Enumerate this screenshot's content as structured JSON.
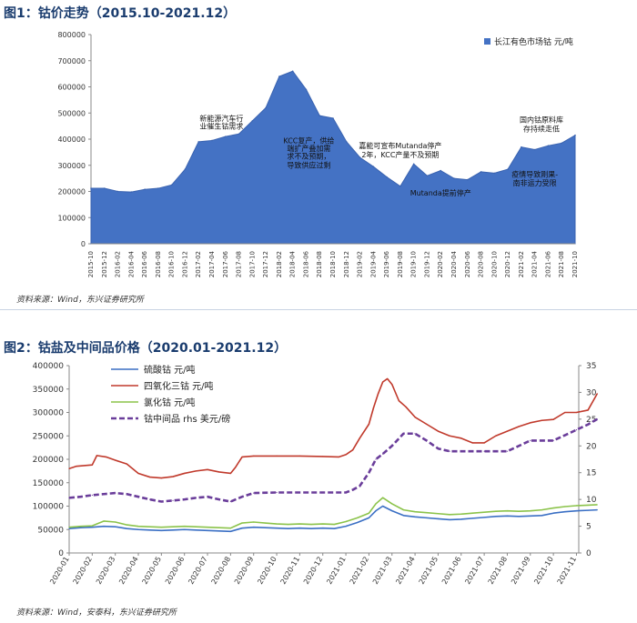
{
  "figure1": {
    "title": "图1：钴价走势（2015.10-2021.12）",
    "source": "资料来源：Wind，东兴证券研究所",
    "chart_data": {
      "type": "area",
      "legend": "长江有色市场钴 元/吨",
      "legend_position": "top-right",
      "ylim": [
        0,
        800000
      ],
      "yticks": [
        "0",
        "100000",
        "200000",
        "300000",
        "400000",
        "500000",
        "600000",
        "700000",
        "800000"
      ],
      "x_labels": [
        "2015-10",
        "2015-12",
        "2016-02",
        "2016-04",
        "2016-06",
        "2016-08",
        "2016-10",
        "2016-12",
        "2017-02",
        "2017-04",
        "2017-06",
        "2017-08",
        "2017-10",
        "2017-12",
        "2018-02",
        "2018-04",
        "2018-06",
        "2018-08",
        "2018-10",
        "2018-12",
        "2019-02",
        "2019-04",
        "2019-06",
        "2019-08",
        "2019-10",
        "2019-12",
        "2020-02",
        "2020-04",
        "2020-06",
        "2020-08",
        "2020-10",
        "2020-12",
        "2021-02",
        "2021-04",
        "2021-06",
        "2021-08",
        "2021-10"
      ],
      "values": [
        212000,
        212000,
        200000,
        198000,
        208000,
        212000,
        225000,
        285000,
        390000,
        395000,
        410000,
        420000,
        470000,
        520000,
        640000,
        660000,
        590000,
        490000,
        480000,
        390000,
        330000,
        295000,
        255000,
        220000,
        305000,
        260000,
        280000,
        250000,
        245000,
        275000,
        270000,
        285000,
        370000,
        360000,
        375000,
        385000,
        415000
      ],
      "annotations": [
        {
          "text": "新能源汽车行",
          "x_index": 9.7,
          "y": 470000
        },
        {
          "text": "业催生钴需求",
          "x_index": 9.7,
          "y": 440000
        },
        {
          "text": "KCC复产，供给",
          "x_index": 16.2,
          "y": 385000
        },
        {
          "text": "端扩产叠加需",
          "x_index": 16.2,
          "y": 355000
        },
        {
          "text": "求不及预期，",
          "x_index": 16.2,
          "y": 325000
        },
        {
          "text": "导致供应过剩",
          "x_index": 16.2,
          "y": 290000
        },
        {
          "text": "嘉能可宣布Mutanda停产",
          "x_index": 23.0,
          "y": 365000
        },
        {
          "text": "2年，KCC产量不及预期",
          "x_index": 23.0,
          "y": 330000
        },
        {
          "text": "Mutanda提前停产",
          "x_index": 26.0,
          "y": 185000
        },
        {
          "text": "国内钴原料库",
          "x_index": 33.5,
          "y": 465000
        },
        {
          "text": "存持续走低",
          "x_index": 33.5,
          "y": 430000
        },
        {
          "text": "疫情导致刚果-",
          "x_index": 33.0,
          "y": 255000
        },
        {
          "text": "南非运力受限",
          "x_index": 33.0,
          "y": 222000
        }
      ]
    }
  },
  "figure2": {
    "title": "图2：钴盐及中间品价格（2020.01-2021.12）",
    "source": "资料来源：Wind，安泰科，东兴证券研究所",
    "chart_data": {
      "type": "line",
      "ylim_left": [
        0,
        400000
      ],
      "yticks_left": [
        "0",
        "50000",
        "100000",
        "150000",
        "200000",
        "250000",
        "300000",
        "350000",
        "400000"
      ],
      "ylim_right": [
        0,
        35
      ],
      "yticks_right": [
        "0",
        "5",
        "10",
        "15",
        "20",
        "25",
        "30",
        "35"
      ],
      "x_labels": [
        "2020-01",
        "2020-02",
        "2020-03",
        "2020-04",
        "2020-05",
        "2020-06",
        "2020-07",
        "2020-08",
        "2020-09",
        "2020-10",
        "2020-11",
        "2020-12",
        "2021-01",
        "2021-02",
        "2021-03",
        "2021-04",
        "2021-05",
        "2021-06",
        "2021-07",
        "2021-08",
        "2021-09",
        "2021-10",
        "2021-11"
      ],
      "legend_position": "top-left",
      "series": [
        {
          "name": "硫酸钴 元/吨",
          "axis": "left",
          "color": "#3a6fc4",
          "dashed": false,
          "x": [
            0,
            0.5,
            1,
            1.5,
            2,
            2.5,
            3,
            3.5,
            4,
            4.5,
            5,
            5.5,
            6,
            6.5,
            7,
            7.5,
            8,
            8.5,
            9,
            9.5,
            10,
            10.5,
            11,
            11.5,
            12,
            12.5,
            13,
            13.3,
            13.6,
            14,
            14.5,
            15,
            15.5,
            16,
            16.5,
            17,
            17.5,
            18,
            18.5,
            19,
            19.5,
            20,
            20.5,
            21,
            21.5,
            22,
            22.5,
            22.9
          ],
          "values": [
            52000,
            54000,
            55000,
            57000,
            56000,
            52000,
            50000,
            49000,
            48000,
            49000,
            50000,
            49000,
            48000,
            47000,
            46000,
            53000,
            55000,
            54000,
            53000,
            52000,
            53000,
            52000,
            53000,
            52000,
            57000,
            65000,
            75000,
            90000,
            100000,
            90000,
            80000,
            77000,
            75000,
            73000,
            71000,
            72000,
            74000,
            76000,
            78000,
            79000,
            78000,
            79000,
            80000,
            85000,
            88000,
            90000,
            91000,
            92000
          ]
        },
        {
          "name": "四氧化三钴 元/吨",
          "axis": "left",
          "color": "#c0392b",
          "dashed": false,
          "x": [
            0,
            0.3,
            1,
            1.2,
            1.6,
            2,
            2.5,
            3,
            3.5,
            4,
            4.5,
            5,
            5.5,
            6,
            6.5,
            7,
            7.2,
            7.5,
            8,
            9,
            10,
            11,
            11.7,
            12,
            12.3,
            12.6,
            13,
            13.2,
            13.4,
            13.6,
            13.8,
            14,
            14.3,
            14.6,
            15,
            15.5,
            16,
            16.5,
            17,
            17.5,
            18,
            18.5,
            19,
            19.5,
            20,
            20.5,
            21,
            21.5,
            22,
            22.5,
            22.9
          ],
          "values": [
            180000,
            185000,
            188000,
            208000,
            205000,
            198000,
            190000,
            170000,
            162000,
            160000,
            163000,
            170000,
            175000,
            178000,
            173000,
            170000,
            182000,
            205000,
            207000,
            207000,
            207000,
            206000,
            205000,
            210000,
            220000,
            245000,
            275000,
            310000,
            340000,
            365000,
            372000,
            360000,
            325000,
            312000,
            290000,
            275000,
            260000,
            250000,
            245000,
            235000,
            235000,
            250000,
            260000,
            270000,
            278000,
            283000,
            285000,
            300000,
            300000,
            305000,
            340000
          ]
        },
        {
          "name": "氯化钴 元/吨",
          "axis": "left",
          "color": "#8bc34a",
          "dashed": false,
          "x": [
            0,
            0.5,
            1,
            1.5,
            2,
            2.5,
            3,
            3.5,
            4,
            4.5,
            5,
            5.5,
            6,
            6.5,
            7,
            7.5,
            8,
            8.5,
            9,
            9.5,
            10,
            10.5,
            11,
            11.5,
            12,
            12.5,
            13,
            13.3,
            13.6,
            14,
            14.5,
            15,
            15.5,
            16,
            16.5,
            17,
            17.5,
            18,
            18.5,
            19,
            19.5,
            20,
            20.5,
            21,
            21.5,
            22,
            22.5,
            22.9
          ],
          "values": [
            55000,
            57000,
            58000,
            68000,
            66000,
            60000,
            57000,
            56000,
            55000,
            56000,
            57000,
            56000,
            55000,
            54000,
            53000,
            64000,
            66000,
            64000,
            62000,
            61000,
            62000,
            61000,
            62000,
            61000,
            67000,
            75000,
            85000,
            105000,
            118000,
            105000,
            92000,
            88000,
            86000,
            84000,
            82000,
            83000,
            85000,
            87000,
            89000,
            90000,
            89000,
            90000,
            92000,
            96000,
            99000,
            101000,
            102000,
            103000
          ]
        },
        {
          "name": "钴中间品 rhs 美元/磅",
          "axis": "right",
          "color": "#6a3d9a",
          "dashed": true,
          "x": [
            0,
            0.5,
            1,
            1.5,
            2,
            2.5,
            3,
            3.5,
            4,
            4.5,
            5,
            5.5,
            6,
            6.5,
            7,
            7.5,
            8,
            9,
            10,
            11,
            12,
            12.3,
            12.6,
            13,
            13.3,
            13.6,
            14,
            14.5,
            15,
            15.5,
            16,
            16.5,
            17,
            17.5,
            18,
            18.5,
            19,
            19.5,
            20,
            20.5,
            21,
            21.5,
            22,
            22.5,
            22.9
          ],
          "values": [
            10.3,
            10.5,
            10.8,
            11.0,
            11.2,
            11.0,
            10.5,
            10.0,
            9.6,
            9.8,
            10.0,
            10.3,
            10.5,
            10.0,
            9.6,
            10.5,
            11.2,
            11.3,
            11.3,
            11.3,
            11.3,
            11.8,
            12.5,
            15.0,
            17.5,
            18.5,
            20.0,
            22.3,
            22.3,
            21.0,
            19.5,
            19.0,
            19.0,
            19.0,
            19.0,
            19.0,
            19.0,
            20.0,
            21.0,
            21.0,
            21.0,
            22.0,
            23.0,
            24.0,
            25.0
          ]
        }
      ]
    }
  }
}
